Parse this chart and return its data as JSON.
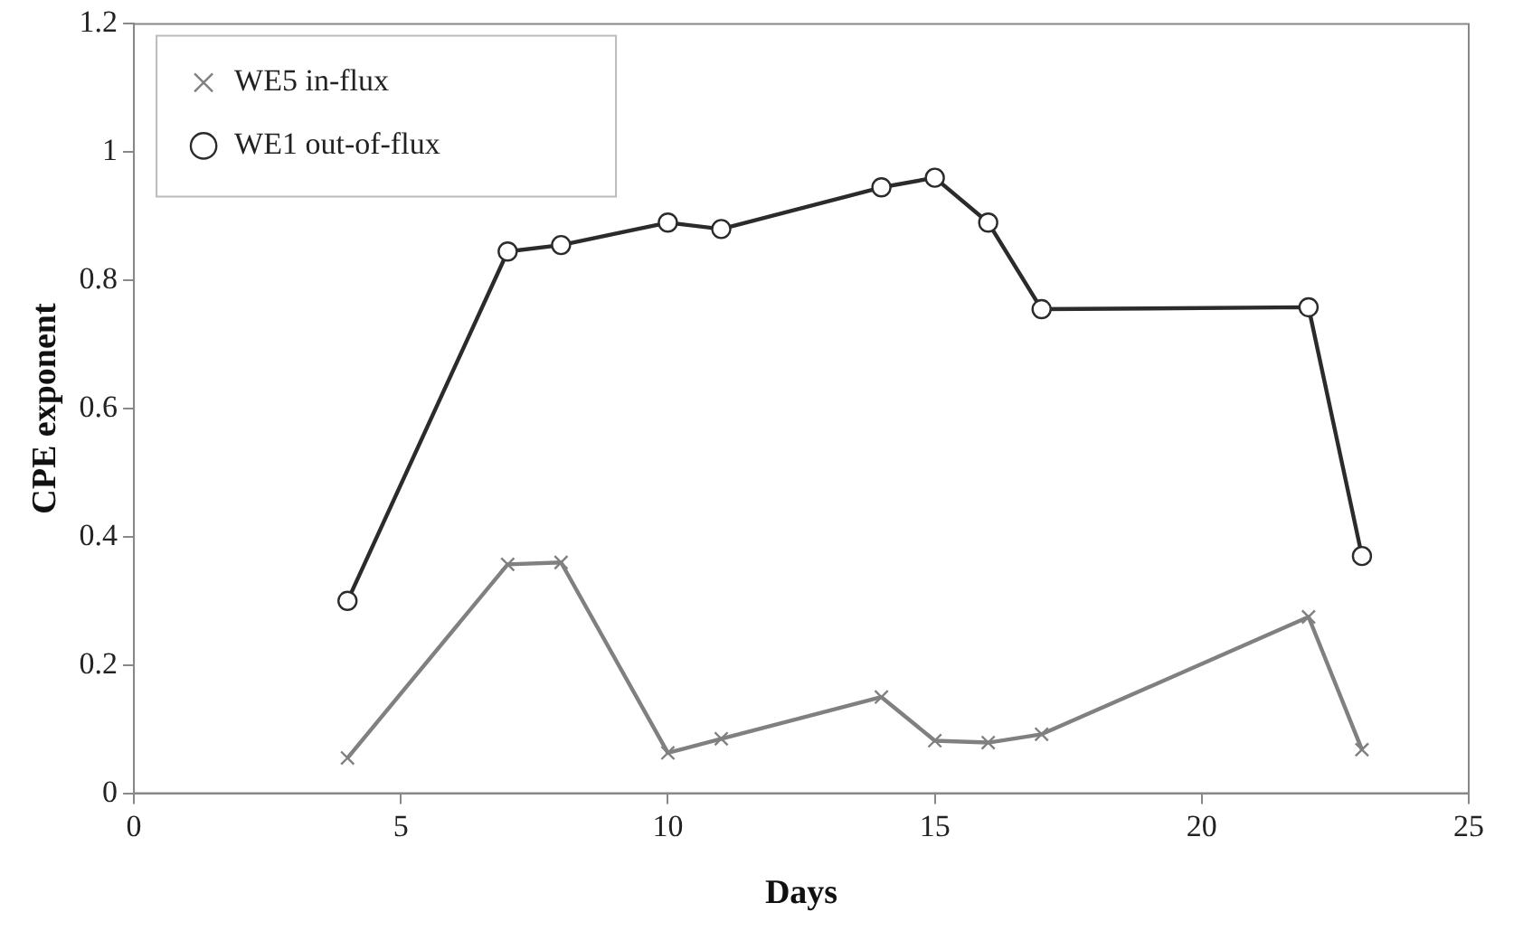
{
  "chart_data": {
    "type": "line",
    "xlabel": "Days",
    "ylabel": "CPE exponent",
    "x": [
      4,
      7,
      8,
      10,
      11,
      14,
      15,
      16,
      17,
      22,
      23
    ],
    "series": [
      {
        "name": "WE5 in-flux",
        "color": "#808080",
        "marker": "cross",
        "values": [
          0.055,
          0.357,
          0.36,
          0.063,
          0.085,
          0.15,
          0.082,
          0.079,
          0.092,
          0.275,
          0.068
        ]
      },
      {
        "name": "WE1 out-of-flux",
        "color": "#2b2b2b",
        "marker": "circle",
        "values": [
          0.3,
          0.845,
          0.855,
          0.89,
          0.88,
          0.945,
          0.96,
          0.89,
          0.755,
          0.758,
          0.37
        ]
      }
    ],
    "xlim": [
      0,
      25
    ],
    "xticks": [
      0,
      5,
      10,
      15,
      20,
      25
    ],
    "ylim": [
      0,
      1.2
    ],
    "yticks": [
      0,
      0.2,
      0.4,
      0.6,
      0.8,
      1,
      1.2
    ],
    "grid": false,
    "legend": "top left",
    "line_style": "solid"
  }
}
